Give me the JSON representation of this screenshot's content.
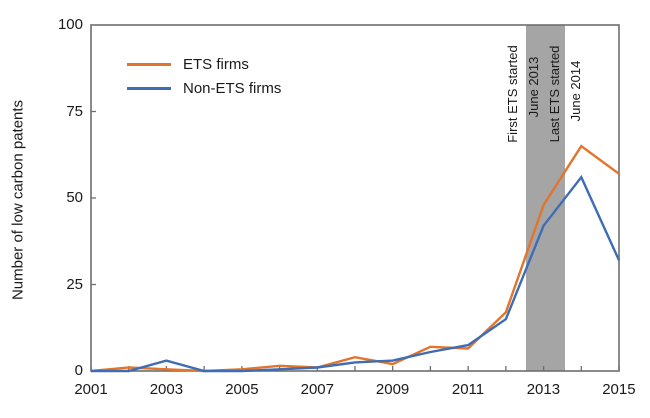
{
  "chart_data": {
    "type": "line",
    "title": "",
    "xlabel": "",
    "ylabel": "Number of low carbon patents",
    "xlim": [
      2001,
      2015
    ],
    "ylim": [
      0,
      100
    ],
    "grid": false,
    "legend_position": "top-left-inside",
    "x": [
      2001,
      2002,
      2003,
      2004,
      2005,
      2006,
      2007,
      2008,
      2009,
      2010,
      2011,
      2012,
      2013,
      2014,
      2015
    ],
    "series": [
      {
        "name": "ETS firms",
        "color": "#E2752D",
        "values": [
          0,
          1,
          0.5,
          0,
          0.5,
          1.5,
          1,
          4,
          2,
          7,
          6.5,
          17,
          48,
          65,
          57
        ]
      },
      {
        "name": "Non-ETS firms",
        "color": "#3E6DB5",
        "values": [
          0,
          0,
          3,
          0,
          0,
          0.5,
          1,
          2.5,
          3,
          5.5,
          7.5,
          15,
          42,
          56,
          32
        ]
      }
    ],
    "yticks": [
      0,
      25,
      50,
      75,
      100
    ],
    "xtick_labels": [
      "2001",
      "2003",
      "2005",
      "2007",
      "2009",
      "2011",
      "2013",
      "2015"
    ],
    "x_minor_ticks": "every year",
    "band": {
      "x_start": 2012.53,
      "x_end": 2013.57,
      "color": "#A5A5A5"
    },
    "annotations": [
      {
        "text": "First ETS started",
        "x": 2012.19,
        "y": 80
      },
      {
        "text": "June 2013",
        "x": 2012.75,
        "y": 82
      },
      {
        "text": "Last ETS started",
        "x": 2013.29,
        "y": 80
      },
      {
        "text": "June 2014",
        "x": 2013.86,
        "y": 81
      }
    ],
    "axis_color": "#6e6e6e"
  }
}
